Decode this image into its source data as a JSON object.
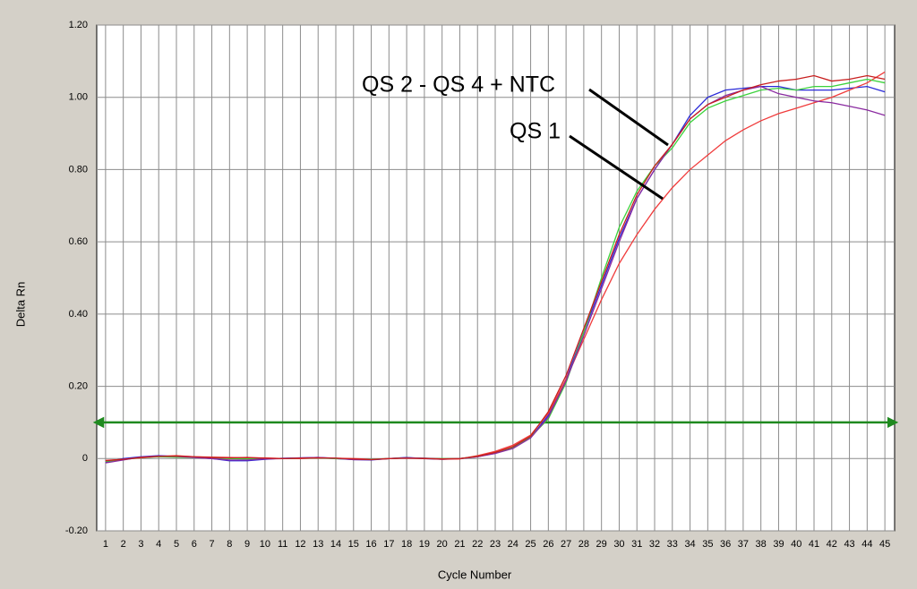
{
  "chart_data": {
    "type": "line",
    "xlabel": "Cycle Number",
    "ylabel": "Delta Rn",
    "x": [
      1,
      2,
      3,
      4,
      5,
      6,
      7,
      8,
      9,
      10,
      11,
      12,
      13,
      14,
      15,
      16,
      17,
      18,
      19,
      20,
      21,
      22,
      23,
      24,
      25,
      26,
      27,
      28,
      29,
      30,
      31,
      32,
      33,
      34,
      35,
      36,
      37,
      38,
      39,
      40,
      41,
      42,
      43,
      44,
      45
    ],
    "xlim": [
      0.5,
      45.55
    ],
    "xticks": [
      1,
      2,
      3,
      4,
      5,
      6,
      7,
      8,
      9,
      10,
      11,
      12,
      13,
      14,
      15,
      16,
      17,
      18,
      19,
      20,
      21,
      22,
      23,
      24,
      25,
      26,
      27,
      28,
      29,
      30,
      31,
      32,
      33,
      34,
      35,
      36,
      37,
      38,
      39,
      40,
      41,
      42,
      43,
      44,
      45
    ],
    "ylim": [
      -0.2,
      1.2
    ],
    "yticks": [
      {
        "value": -0.2,
        "label": "-0.20"
      },
      0,
      {
        "value": 0.2,
        "label": "0.20"
      },
      {
        "value": 0.4,
        "label": "0.40"
      },
      {
        "value": 0.6,
        "label": "0.60"
      },
      {
        "value": 0.8,
        "label": "0.80"
      },
      {
        "value": 1.0,
        "label": "1.00"
      },
      {
        "value": 1.2,
        "label": "1.20"
      }
    ],
    "grid": true,
    "threshold": 0.1,
    "threshold_color": "#1f8a1f",
    "annotations": [
      "QS 2 - QS 4 + NTC",
      "QS 1"
    ],
    "series": [
      {
        "color": "#2a2ad8",
        "values": [
          -0.01,
          0,
          0.005,
          0.008,
          0.006,
          0.004,
          0,
          -0.006,
          -0.006,
          -0.002,
          0.001,
          0.002,
          0.003,
          0,
          -0.003,
          -0.004,
          0,
          0.003,
          0,
          -0.002,
          0,
          0.005,
          0.015,
          0.03,
          0.058,
          0.12,
          0.22,
          0.35,
          0.48,
          0.61,
          0.72,
          0.8,
          0.87,
          0.95,
          1.0,
          1.02,
          1.025,
          1.03,
          1.03,
          1.02,
          1.02,
          1.02,
          1.025,
          1.03,
          1.015
        ]
      },
      {
        "color": "#f03c3c",
        "values": [
          -0.005,
          -0.002,
          0.002,
          0.006,
          0.008,
          0.005,
          0.004,
          0.003,
          0.002,
          0.002,
          0,
          0,
          0.002,
          0.001,
          0,
          -0.002,
          0,
          0.002,
          0.001,
          -0.002,
          -0.001,
          0.008,
          0.02,
          0.037,
          0.065,
          0.125,
          0.22,
          0.33,
          0.44,
          0.54,
          0.62,
          0.69,
          0.75,
          0.8,
          0.84,
          0.88,
          0.91,
          0.935,
          0.955,
          0.97,
          0.985,
          1.0,
          1.02,
          1.04,
          1.07
        ]
      },
      {
        "color": "#3cd23c",
        "values": [
          -0.008,
          -0.003,
          0.003,
          0.005,
          0.004,
          0.003,
          0.001,
          0,
          -0.001,
          0,
          0,
          0.001,
          0.002,
          0,
          -0.002,
          -0.002,
          0,
          0.002,
          0.001,
          0,
          0,
          0.006,
          0.016,
          0.03,
          0.06,
          0.11,
          0.21,
          0.35,
          0.5,
          0.64,
          0.74,
          0.81,
          0.86,
          0.93,
          0.97,
          0.99,
          1.005,
          1.02,
          1.025,
          1.02,
          1.03,
          1.03,
          1.04,
          1.05,
          1.04
        ]
      },
      {
        "color": "#8a2aa0",
        "values": [
          -0.012,
          -0.004,
          0.004,
          0.007,
          0.006,
          0.003,
          0,
          -0.004,
          -0.004,
          -0.001,
          0,
          0.002,
          0.003,
          0.001,
          -0.003,
          -0.003,
          0,
          0.002,
          0.001,
          -0.001,
          0,
          0.005,
          0.014,
          0.028,
          0.057,
          0.115,
          0.215,
          0.34,
          0.47,
          0.6,
          0.72,
          0.8,
          0.87,
          0.94,
          0.98,
          1.005,
          1.02,
          1.03,
          1.01,
          1.0,
          0.99,
          0.985,
          0.975,
          0.965,
          0.95
        ]
      },
      {
        "color": "#c81e1e",
        "values": [
          -0.006,
          -0.002,
          0.003,
          0.006,
          0.007,
          0.005,
          0.003,
          0.002,
          0.003,
          0.001,
          0,
          0.001,
          0.002,
          0.001,
          -0.001,
          -0.003,
          0,
          0.001,
          0,
          -0.001,
          0,
          0.006,
          0.017,
          0.033,
          0.062,
          0.13,
          0.23,
          0.36,
          0.49,
          0.62,
          0.73,
          0.81,
          0.87,
          0.94,
          0.98,
          1.0,
          1.02,
          1.035,
          1.045,
          1.05,
          1.06,
          1.045,
          1.05,
          1.06,
          1.05
        ]
      }
    ]
  }
}
